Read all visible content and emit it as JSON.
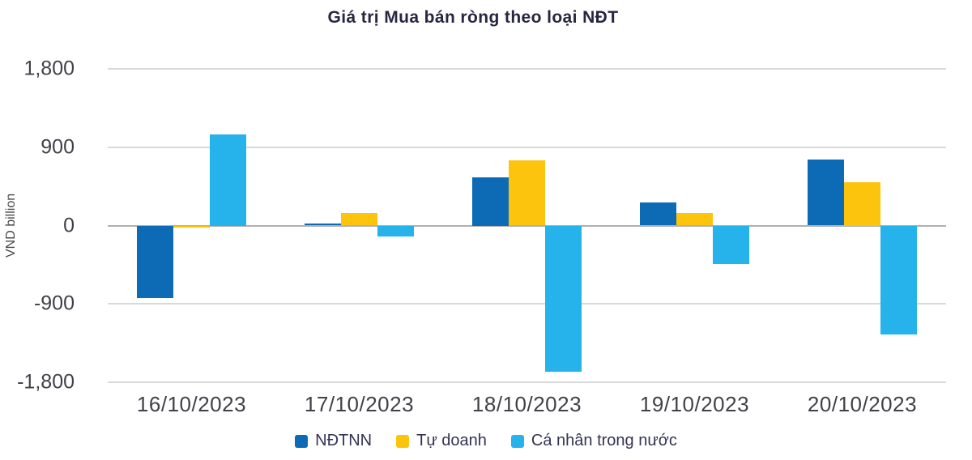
{
  "title": "Giá trị Mua bán ròng theo loại NĐT",
  "chart_data": {
    "type": "bar",
    "title": "Giá trị Mua bán ròng theo loại NĐT",
    "xlabel": "",
    "ylabel": "VND billion",
    "unit": "VND billion",
    "categories": [
      "16/10/2023",
      "17/10/2023",
      "18/10/2023",
      "19/10/2023",
      "20/10/2023"
    ],
    "series": [
      {
        "name": "NĐTNN",
        "color": "#0d6bb5",
        "values": [
          -830,
          20,
          550,
          265,
          755
        ]
      },
      {
        "name": "Tự doanh",
        "color": "#fcc40d",
        "values": [
          -10,
          145,
          745,
          145,
          500
        ]
      },
      {
        "name": "Cá nhân trong nước",
        "color": "#26b2ea",
        "values": [
          1050,
          -130,
          -1675,
          -440,
          -1250
        ]
      }
    ],
    "ylim": [
      -1800,
      1800
    ],
    "yticks": [
      {
        "value": 1800,
        "label": "1,800"
      },
      {
        "value": 900,
        "label": "900"
      },
      {
        "value": 0,
        "label": "0"
      },
      {
        "value": -900,
        "label": "-900"
      },
      {
        "value": -1800,
        "label": "-1,800"
      }
    ],
    "grid": true,
    "legend_position": "bottom"
  }
}
